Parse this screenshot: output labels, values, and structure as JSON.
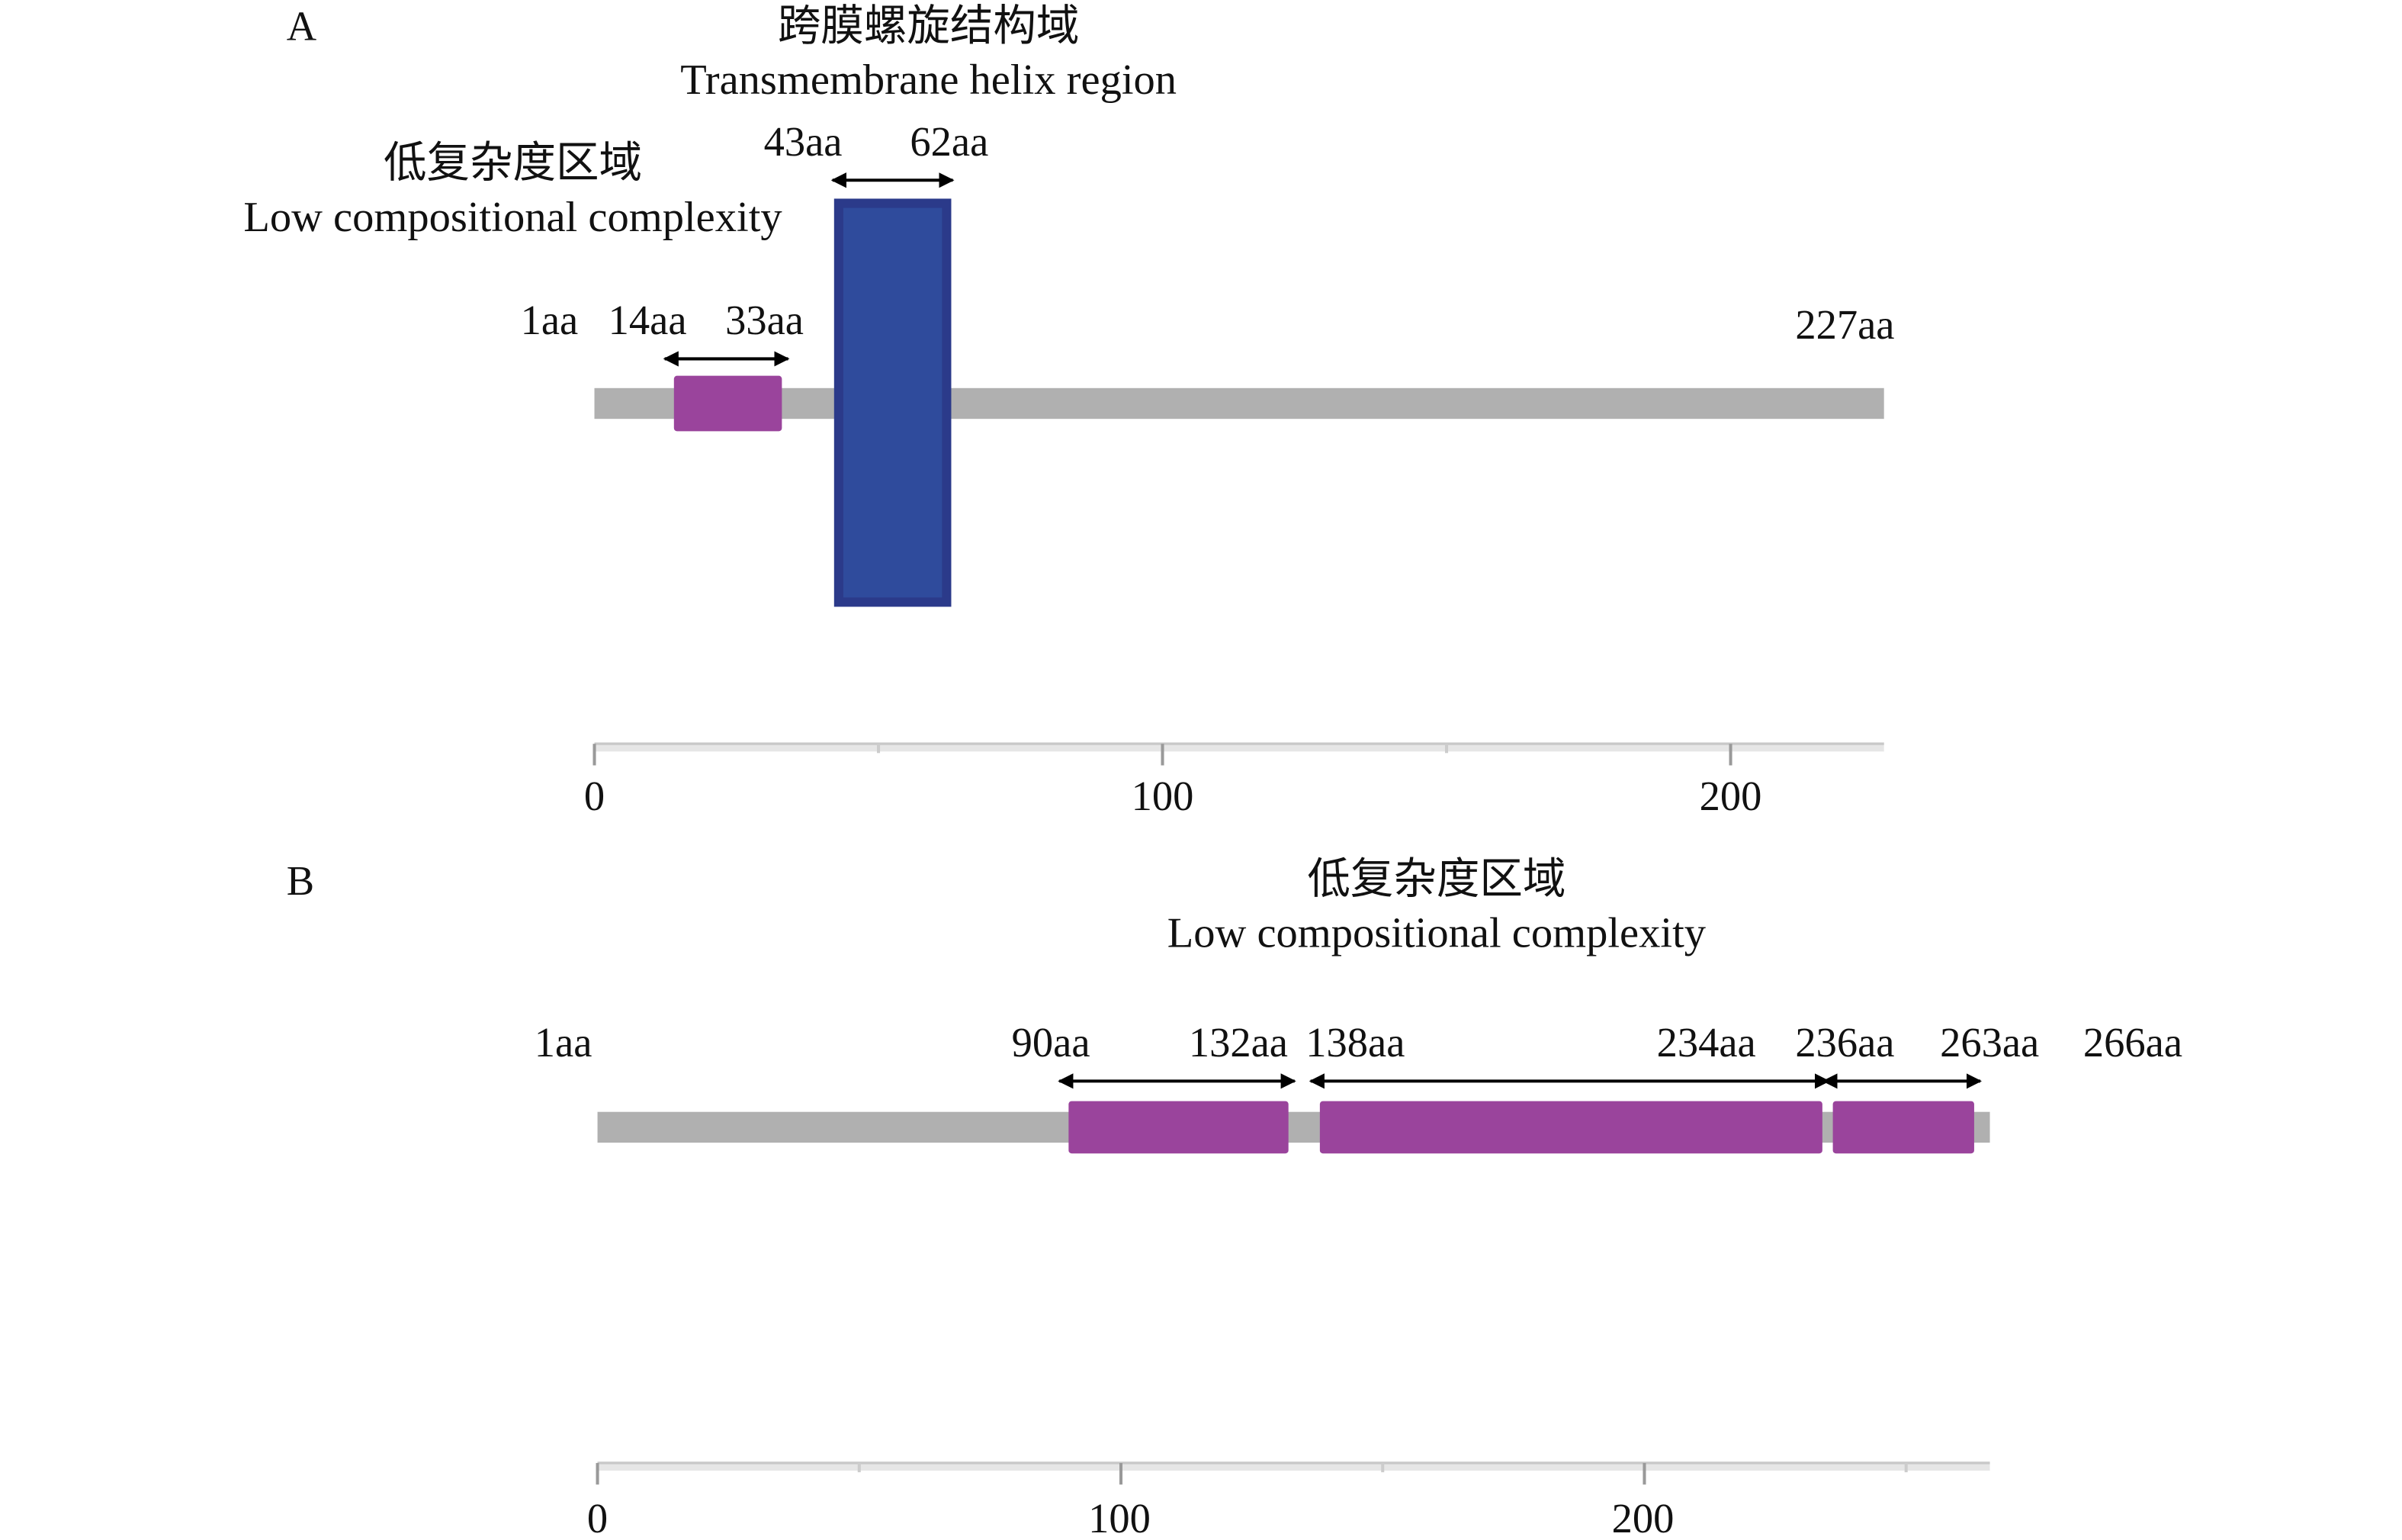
{
  "colors": {
    "backbone": "#b0b0b0",
    "low_complexity": "#9a449c",
    "transmembrane": "#2f4b9c",
    "transmembrane_border": "#2b3a8a",
    "axis": "#c8c8c8"
  },
  "panel_a": {
    "label": "A",
    "length": 227,
    "tm_title_cn": "跨膜螺旋结构域",
    "tm_title_en": "Transmembrane helix region",
    "lc_title_cn": "低复杂度区域",
    "lc_title_en": "Low compositional complexity",
    "pos_labels": [
      "1aa",
      "14aa",
      "33aa",
      "43aa",
      "62aa",
      "227aa"
    ],
    "domains": [
      {
        "type": "low_complexity",
        "start": 14,
        "end": 33
      },
      {
        "type": "transmembrane",
        "start": 43,
        "end": 62
      }
    ],
    "axis_ticks": [
      "0",
      "100",
      "200"
    ]
  },
  "panel_b": {
    "label": "B",
    "length": 266,
    "lc_title_cn": "低复杂度区域",
    "lc_title_en": "Low compositional complexity",
    "pos_labels": [
      "1aa",
      "90aa",
      "132aa",
      "138aa",
      "234aa",
      "236aa",
      "263aa",
      "266aa"
    ],
    "domains": [
      {
        "type": "low_complexity",
        "start": 90,
        "end": 132
      },
      {
        "type": "low_complexity",
        "start": 138,
        "end": 234
      },
      {
        "type": "low_complexity",
        "start": 236,
        "end": 263
      }
    ],
    "axis_ticks": [
      "0",
      "100",
      "200"
    ]
  }
}
